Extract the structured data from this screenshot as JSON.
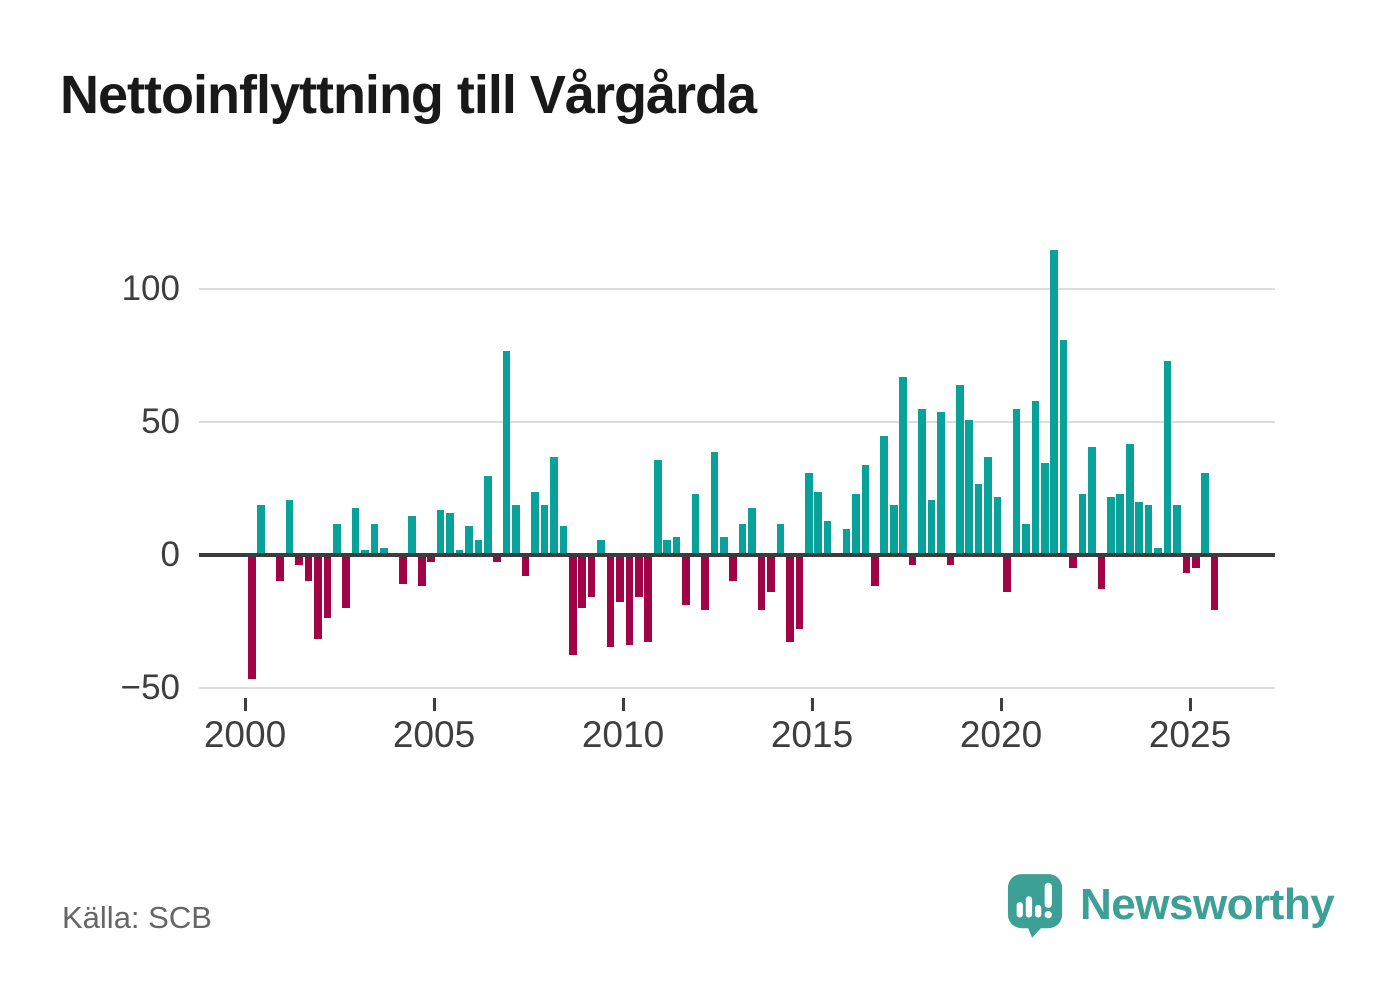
{
  "title": "Nettoinflyttning till Vårgårda",
  "source": "Källa: SCB",
  "logo": {
    "brand": "Newsworthy",
    "icon": "newsworthy-speech-bubble-bar-chart-icon"
  },
  "colors": {
    "positive": "#08a29a",
    "negative": "#a20346",
    "grid": "#dcdcdc",
    "zero_line": "#3c3c3c",
    "axis_text": "#3e3e3e",
    "title_text": "#191919",
    "source_text": "#666666",
    "brand": "#3da096",
    "background": "#ffffff"
  },
  "chart_data": {
    "type": "bar",
    "title": "Nettoinflyttning till Vårgårda",
    "xlabel": "",
    "ylabel": "",
    "grid": true,
    "legend": false,
    "ylim": [
      -60,
      120
    ],
    "yticks": [
      100,
      50,
      0,
      -50
    ],
    "ytick_labels": [
      "100",
      "50",
      "0",
      "−50"
    ],
    "xtick_labels": [
      "2000",
      "2005",
      "2010",
      "2015",
      "2020",
      "2025"
    ],
    "frequency": "quarterly",
    "x": [
      "2000Q1",
      "2000Q2",
      "2000Q3",
      "2000Q4",
      "2001Q1",
      "2001Q2",
      "2001Q3",
      "2001Q4",
      "2002Q1",
      "2002Q2",
      "2002Q3",
      "2002Q4",
      "2003Q1",
      "2003Q2",
      "2003Q3",
      "2003Q4",
      "2004Q1",
      "2004Q2",
      "2004Q3",
      "2004Q4",
      "2005Q1",
      "2005Q2",
      "2005Q3",
      "2005Q4",
      "2006Q1",
      "2006Q2",
      "2006Q3",
      "2006Q4",
      "2007Q1",
      "2007Q2",
      "2007Q3",
      "2007Q4",
      "2008Q1",
      "2008Q2",
      "2008Q3",
      "2008Q4",
      "2009Q1",
      "2009Q2",
      "2009Q3",
      "2009Q4",
      "2010Q1",
      "2010Q2",
      "2010Q3",
      "2010Q4",
      "2011Q1",
      "2011Q2",
      "2011Q3",
      "2011Q4",
      "2012Q1",
      "2012Q2",
      "2012Q3",
      "2012Q4",
      "2013Q1",
      "2013Q2",
      "2013Q3",
      "2013Q4",
      "2014Q1",
      "2014Q2",
      "2014Q3",
      "2014Q4",
      "2015Q1",
      "2015Q2",
      "2015Q3",
      "2015Q4",
      "2016Q1",
      "2016Q2",
      "2016Q3",
      "2016Q4",
      "2017Q1",
      "2017Q2",
      "2017Q3",
      "2017Q4",
      "2018Q1",
      "2018Q2",
      "2018Q3",
      "2018Q4",
      "2019Q1",
      "2019Q2",
      "2019Q3",
      "2019Q4",
      "2020Q1",
      "2020Q2",
      "2020Q3",
      "2020Q4",
      "2021Q1",
      "2021Q2",
      "2021Q3",
      "2021Q4",
      "2022Q1",
      "2022Q2",
      "2022Q3",
      "2022Q4",
      "2023Q1",
      "2023Q2",
      "2023Q3",
      "2023Q4",
      "2024Q1",
      "2024Q2",
      "2024Q3",
      "2024Q4",
      "2025Q1",
      "2025Q2",
      "2025Q3"
    ],
    "values": [
      -46,
      18,
      0,
      -9,
      20,
      -3,
      -9,
      -31,
      -23,
      11,
      -19,
      17,
      1,
      11,
      2,
      0,
      -10,
      14,
      -11,
      -2,
      16,
      15,
      1,
      10,
      5,
      29,
      -2,
      76,
      18,
      -7,
      23,
      18,
      36,
      10,
      -37,
      -19,
      -15,
      5,
      -34,
      -17,
      -33,
      -15,
      -32,
      35,
      5,
      6,
      -18,
      22,
      -20,
      38,
      6,
      -9,
      11,
      17,
      -20,
      -13,
      11,
      -32,
      -27,
      30,
      23,
      12,
      0,
      9,
      22,
      33,
      -11,
      44,
      18,
      66,
      -3,
      54,
      20,
      53,
      -3,
      63,
      50,
      26,
      36,
      21,
      -13,
      54,
      11,
      57,
      34,
      114,
      80,
      -4,
      22,
      40,
      -12,
      21,
      22,
      41,
      19,
      18,
      2,
      72,
      18,
      -6,
      -4,
      30,
      -20
    ]
  }
}
